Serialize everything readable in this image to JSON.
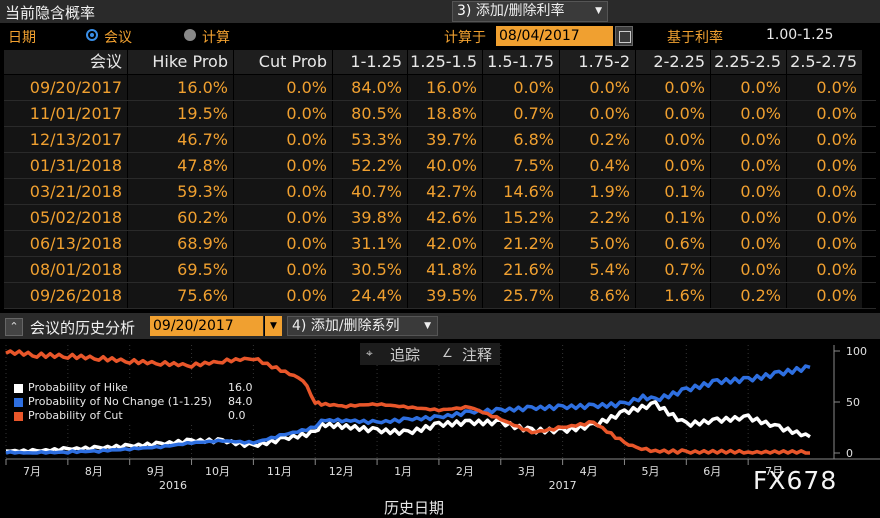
{
  "window": {
    "title": "当前隐含概率",
    "add_remove_num": "3)",
    "add_remove_label": "添加/删除利率"
  },
  "controls": {
    "date_label": "日期",
    "radio_meeting": "会议",
    "radio_calc": "计算",
    "calc_on_label": "计算于",
    "calc_date": "08/04/2017",
    "base_rate_label": "基于利率",
    "base_rate_value": "1.00-1.25"
  },
  "table": {
    "headers": [
      "会议",
      "Hike Prob",
      "Cut Prob",
      "1-1.25",
      "1.25-1.5",
      "1.5-1.75",
      "1.75-2",
      "2-2.25",
      "2.25-2.5",
      "2.5-2.75"
    ],
    "rows": [
      [
        "09/20/2017",
        "16.0%",
        "0.0%",
        "84.0%",
        "16.0%",
        "0.0%",
        "0.0%",
        "0.0%",
        "0.0%",
        "0.0%"
      ],
      [
        "11/01/2017",
        "19.5%",
        "0.0%",
        "80.5%",
        "18.8%",
        "0.7%",
        "0.0%",
        "0.0%",
        "0.0%",
        "0.0%"
      ],
      [
        "12/13/2017",
        "46.7%",
        "0.0%",
        "53.3%",
        "39.7%",
        "6.8%",
        "0.2%",
        "0.0%",
        "0.0%",
        "0.0%"
      ],
      [
        "01/31/2018",
        "47.8%",
        "0.0%",
        "52.2%",
        "40.0%",
        "7.5%",
        "0.4%",
        "0.0%",
        "0.0%",
        "0.0%"
      ],
      [
        "03/21/2018",
        "59.3%",
        "0.0%",
        "40.7%",
        "42.7%",
        "14.6%",
        "1.9%",
        "0.1%",
        "0.0%",
        "0.0%"
      ],
      [
        "05/02/2018",
        "60.2%",
        "0.0%",
        "39.8%",
        "42.6%",
        "15.2%",
        "2.2%",
        "0.1%",
        "0.0%",
        "0.0%"
      ],
      [
        "06/13/2018",
        "68.9%",
        "0.0%",
        "31.1%",
        "42.0%",
        "21.2%",
        "5.0%",
        "0.6%",
        "0.0%",
        "0.0%"
      ],
      [
        "08/01/2018",
        "69.5%",
        "0.0%",
        "30.5%",
        "41.8%",
        "21.6%",
        "5.4%",
        "0.7%",
        "0.0%",
        "0.0%"
      ],
      [
        "09/26/2018",
        "75.6%",
        "0.0%",
        "24.4%",
        "39.5%",
        "25.7%",
        "8.6%",
        "1.6%",
        "0.2%",
        "0.0%"
      ]
    ]
  },
  "chart_header": {
    "title": "会议的历史分析",
    "date": "09/20/2017",
    "add_series_num": "4)",
    "add_series_label": "添加/删除系列",
    "track_label": "追踪",
    "annotate_label": "注释",
    "xaxis_title": "历史日期",
    "watermark": "FX678"
  },
  "colors": {
    "hike": "#ffffff",
    "no_change": "#2e6fe0",
    "cut": "#e8562a",
    "accent_orange": "#f0a030"
  },
  "chart_data": {
    "type": "line",
    "title": "",
    "xlabel": "历史日期",
    "ylabel": "",
    "ylim": [
      0,
      100
    ],
    "y_ticks": [
      "0",
      "50",
      "100"
    ],
    "x_ticks": [
      "7月",
      "8月",
      "9月",
      "10月",
      "11月",
      "12月",
      "1月",
      "2月",
      "3月",
      "4月",
      "5月",
      "6月",
      "7月"
    ],
    "x_years": [
      {
        "label": "2016",
        "at_month": 2.7
      },
      {
        "label": "2017",
        "at_month": 9.0
      }
    ],
    "legend_position": "top-left",
    "grid": "vertical-dotted",
    "series": [
      {
        "name": "Probability of Hike",
        "legend_value": "16.0",
        "color": "#ffffff",
        "points": [
          [
            0,
            2
          ],
          [
            0.5,
            2
          ],
          [
            1,
            4
          ],
          [
            1.5,
            5
          ],
          [
            2,
            7
          ],
          [
            2.5,
            9
          ],
          [
            3,
            12
          ],
          [
            3.5,
            12
          ],
          [
            4,
            7
          ],
          [
            4.5,
            14
          ],
          [
            5,
            20
          ],
          [
            5.1,
            28
          ],
          [
            5.5,
            26
          ],
          [
            6,
            22
          ],
          [
            6.5,
            20
          ],
          [
            7,
            28
          ],
          [
            7.5,
            30
          ],
          [
            8,
            30
          ],
          [
            8.3,
            25
          ],
          [
            8.5,
            22
          ],
          [
            9,
            22
          ],
          [
            9.5,
            27
          ],
          [
            10,
            40
          ],
          [
            10.5,
            48
          ],
          [
            11,
            28
          ],
          [
            11.5,
            32
          ],
          [
            12,
            35
          ],
          [
            12.5,
            25
          ],
          [
            13,
            16
          ]
        ]
      },
      {
        "name": "Probability of No Change (1-1.25)",
        "legend_value": "84.0",
        "color": "#2e6fe0",
        "points": [
          [
            0,
            0
          ],
          [
            0.5,
            0
          ],
          [
            1,
            1
          ],
          [
            1.5,
            2
          ],
          [
            2,
            4
          ],
          [
            2.5,
            6
          ],
          [
            3,
            10
          ],
          [
            3.5,
            12
          ],
          [
            4,
            10
          ],
          [
            4.5,
            18
          ],
          [
            5,
            25
          ],
          [
            5.1,
            32
          ],
          [
            5.5,
            32
          ],
          [
            6,
            30
          ],
          [
            6.5,
            33
          ],
          [
            7,
            35
          ],
          [
            7.5,
            40
          ],
          [
            8,
            42
          ],
          [
            8.5,
            44
          ],
          [
            9,
            45
          ],
          [
            9.5,
            46
          ],
          [
            10,
            48
          ],
          [
            10.3,
            55
          ],
          [
            10.5,
            52
          ],
          [
            11,
            62
          ],
          [
            11.5,
            70
          ],
          [
            12,
            72
          ],
          [
            12.5,
            78
          ],
          [
            13,
            84
          ]
        ]
      },
      {
        "name": "Probability of Cut",
        "legend_value": "0.0",
        "color": "#e8562a",
        "points": [
          [
            0,
            100
          ],
          [
            0.5,
            96
          ],
          [
            1,
            95
          ],
          [
            1.5,
            93
          ],
          [
            2,
            90
          ],
          [
            2.5,
            88
          ],
          [
            3,
            86
          ],
          [
            3.5,
            90
          ],
          [
            4,
            93
          ],
          [
            4.3,
            85
          ],
          [
            4.8,
            72
          ],
          [
            5,
            50
          ],
          [
            5.1,
            48
          ],
          [
            5.5,
            46
          ],
          [
            6,
            48
          ],
          [
            6.5,
            45
          ],
          [
            7,
            42
          ],
          [
            7.5,
            45
          ],
          [
            8,
            33
          ],
          [
            8.5,
            20
          ],
          [
            9,
            25
          ],
          [
            9.5,
            30
          ],
          [
            10,
            10
          ],
          [
            10.2,
            5
          ],
          [
            10.5,
            2
          ],
          [
            11,
            1
          ],
          [
            12,
            0
          ],
          [
            13,
            0
          ]
        ]
      }
    ]
  }
}
